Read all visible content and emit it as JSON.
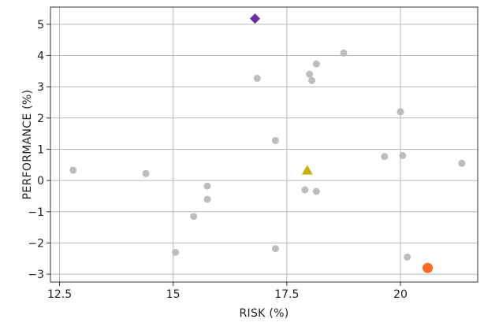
{
  "chart_data": {
    "type": "scatter",
    "title": "",
    "xlabel": "RISK (%)",
    "ylabel": "PERFORMANCE (%)",
    "xlim": [
      12.3,
      21.7
    ],
    "ylim": [
      -3.25,
      5.55
    ],
    "x_ticks": [
      12.5,
      15,
      17.5,
      20
    ],
    "x_tick_labels": [
      "12.5",
      "15",
      "17.5",
      "20"
    ],
    "y_ticks": [
      -3,
      -2,
      -1,
      0,
      1,
      2,
      3,
      4,
      5
    ],
    "y_tick_labels": [
      "−3",
      "−2",
      "−1",
      "0",
      "1",
      "2",
      "3",
      "4",
      "5"
    ],
    "x_grid_lines": [
      12.5,
      15,
      17.5,
      20
    ],
    "y_grid_lines": [
      -3,
      -2,
      -1,
      0,
      1,
      2,
      3,
      4,
      5
    ],
    "grid": true,
    "series": [
      {
        "marker": "circle",
        "color": "#bdbdbd",
        "points": [
          {
            "x": 12.8,
            "y": 0.33
          },
          {
            "x": 14.4,
            "y": 0.22
          },
          {
            "x": 15.05,
            "y": -2.3
          },
          {
            "x": 15.45,
            "y": -1.15
          },
          {
            "x": 15.75,
            "y": -0.18
          },
          {
            "x": 15.75,
            "y": -0.6
          },
          {
            "x": 16.85,
            "y": 3.27
          },
          {
            "x": 17.25,
            "y": 1.28
          },
          {
            "x": 17.25,
            "y": -2.18
          },
          {
            "x": 17.9,
            "y": -0.3
          },
          {
            "x": 18.0,
            "y": 3.4
          },
          {
            "x": 18.05,
            "y": 3.2
          },
          {
            "x": 18.15,
            "y": 3.73
          },
          {
            "x": 18.15,
            "y": -0.35
          },
          {
            "x": 18.75,
            "y": 4.08
          },
          {
            "x": 19.65,
            "y": 0.77
          },
          {
            "x": 20.0,
            "y": 2.2
          },
          {
            "x": 20.05,
            "y": 0.8
          },
          {
            "x": 20.15,
            "y": -2.45
          },
          {
            "x": 21.35,
            "y": 0.55
          }
        ]
      },
      {
        "marker": "diamond",
        "color": "#6a2c9e",
        "points": [
          {
            "x": 16.8,
            "y": 5.18
          }
        ]
      },
      {
        "marker": "triangle",
        "color": "#c4b400",
        "points": [
          {
            "x": 17.95,
            "y": 0.32
          }
        ]
      },
      {
        "marker": "circle-large",
        "color": "#ff6b21",
        "points": [
          {
            "x": 20.6,
            "y": -2.8
          }
        ]
      }
    ]
  }
}
